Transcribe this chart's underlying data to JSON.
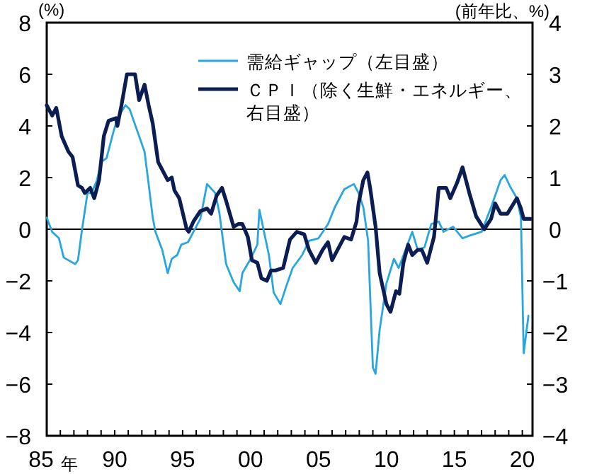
{
  "chart_data": {
    "type": "line",
    "ylabel": "(%)",
    "y2label": "(前年比、%)",
    "legend": "top",
    "xlabel": "年",
    "xlim": [
      1985,
      2020.75
    ],
    "xticks": [
      {
        "value": 1985,
        "label": "85"
      },
      {
        "value": 1986,
        "label": null
      },
      {
        "value": 1987,
        "label": null
      },
      {
        "value": 1988,
        "label": null
      },
      {
        "value": 1989,
        "label": null
      },
      {
        "value": 1990,
        "label": "90"
      },
      {
        "value": 1991,
        "label": null
      },
      {
        "value": 1992,
        "label": null
      },
      {
        "value": 1993,
        "label": null
      },
      {
        "value": 1994,
        "label": null
      },
      {
        "value": 1995,
        "label": "95"
      },
      {
        "value": 1996,
        "label": null
      },
      {
        "value": 1997,
        "label": null
      },
      {
        "value": 1998,
        "label": null
      },
      {
        "value": 1999,
        "label": null
      },
      {
        "value": 2000,
        "label": "00"
      },
      {
        "value": 2001,
        "label": null
      },
      {
        "value": 2002,
        "label": null
      },
      {
        "value": 2003,
        "label": null
      },
      {
        "value": 2004,
        "label": null
      },
      {
        "value": 2005,
        "label": "05"
      },
      {
        "value": 2006,
        "label": null
      },
      {
        "value": 2007,
        "label": null
      },
      {
        "value": 2008,
        "label": null
      },
      {
        "value": 2009,
        "label": null
      },
      {
        "value": 2010,
        "label": "10"
      },
      {
        "value": 2011,
        "label": null
      },
      {
        "value": 2012,
        "label": null
      },
      {
        "value": 2013,
        "label": null
      },
      {
        "value": 2014,
        "label": null
      },
      {
        "value": 2015,
        "label": "15"
      },
      {
        "value": 2016,
        "label": null
      },
      {
        "value": 2017,
        "label": null
      },
      {
        "value": 2018,
        "label": null
      },
      {
        "value": 2019,
        "label": null
      },
      {
        "value": 2020,
        "label": "20"
      }
    ],
    "ylim": [
      -8,
      8
    ],
    "yticks": [
      -8,
      -6,
      -4,
      -2,
      0,
      2,
      4,
      6,
      8
    ],
    "y2lim": [
      -4,
      4
    ],
    "y2ticks": [
      -4,
      -3,
      -2,
      -1,
      0,
      1,
      2,
      3,
      4
    ],
    "ref_lines": [
      {
        "axis": "y",
        "value": 0
      }
    ],
    "series": [
      {
        "name": "需給ギャップ（左目盛）",
        "color": "#29a6de",
        "x": [
          1985.0,
          1985.4,
          1985.9,
          1986.25,
          1987.1,
          1987.3,
          1987.6,
          1988.0,
          1988.3,
          1988.7,
          1989.0,
          1989.4,
          1989.9,
          1990.2,
          1990.8,
          1991.1,
          1991.6,
          1992.2,
          1992.5,
          1992.8,
          1993.0,
          1993.5,
          1993.9,
          1994.2,
          1994.6,
          1994.9,
          1995.4,
          1995.8,
          1996.3,
          1996.8,
          1997.4,
          1997.7,
          1998.2,
          1998.75,
          1999.2,
          1999.4,
          2000.0,
          2000.5,
          2000.65,
          2001.35,
          2001.7,
          2002.2,
          2002.6,
          2003.1,
          2003.8,
          2004.3,
          2005.0,
          2005.7,
          2006.2,
          2006.9,
          2007.6,
          2007.95,
          2008.3,
          2008.65,
          2009.0,
          2009.2,
          2009.5,
          2010.0,
          2010.55,
          2010.9,
          2011.4,
          2011.9,
          2012.3,
          2012.8,
          2013.3,
          2013.85,
          2014.2,
          2014.9,
          2015.6,
          2016.1,
          2017.0,
          2017.7,
          2018.4,
          2018.7,
          2019.1,
          2019.6,
          2019.9,
          2020.1,
          2020.45
        ],
        "values": [
          0.45,
          -0.1,
          -0.35,
          -1.1,
          -1.35,
          -1.2,
          0.0,
          1.4,
          1.4,
          1.9,
          2.6,
          2.75,
          3.75,
          4.3,
          4.8,
          4.65,
          3.9,
          3.0,
          1.75,
          0.45,
          -0.1,
          -0.8,
          -1.7,
          -1.15,
          -1.0,
          -0.6,
          -0.5,
          -0.1,
          0.4,
          1.75,
          1.4,
          0.65,
          -1.35,
          -2.05,
          -2.4,
          -1.7,
          -1.15,
          -0.6,
          0.75,
          -1.0,
          -2.45,
          -2.9,
          -2.25,
          -1.5,
          -1.0,
          -0.45,
          -0.35,
          0.2,
          0.85,
          1.55,
          1.75,
          1.4,
          0.85,
          -0.45,
          -5.35,
          -5.6,
          -3.9,
          -2.1,
          -1.15,
          -1.5,
          -0.8,
          -0.1,
          -0.8,
          -0.7,
          0.2,
          0.3,
          -0.1,
          0.1,
          -0.35,
          -0.25,
          -0.1,
          0.85,
          1.9,
          2.1,
          1.65,
          1.2,
          0.45,
          -4.8,
          -3.35
        ]
      },
      {
        "name": "ＣＰＩ（除く生鮮・エネルギー、右目盛）",
        "color": "#0b1d52",
        "axis": "y2",
        "x": [
          1985.0,
          1985.4,
          1985.7,
          1986.1,
          1986.6,
          1986.9,
          1987.3,
          1987.6,
          1987.8,
          1988.2,
          1988.5,
          1988.85,
          1989.2,
          1989.55,
          1990.1,
          1990.2,
          1990.5,
          1990.9,
          1991.5,
          1991.8,
          1992.2,
          1992.5,
          1992.8,
          1993.2,
          1993.5,
          1993.9,
          1994.2,
          1994.4,
          1994.75,
          1995.3,
          1995.45,
          1995.8,
          1996.3,
          1996.8,
          1997.1,
          1997.5,
          1997.9,
          1998.2,
          1998.75,
          1999.1,
          1999.4,
          1999.8,
          2000.1,
          2000.5,
          2000.8,
          2001.2,
          2001.5,
          2001.8,
          2002.4,
          2002.9,
          2003.4,
          2003.95,
          2004.3,
          2004.8,
          2005.3,
          2005.7,
          2006.0,
          2006.6,
          2006.9,
          2007.4,
          2007.8,
          2007.95,
          2008.3,
          2008.6,
          2008.8,
          2009.2,
          2009.5,
          2010.0,
          2010.3,
          2010.7,
          2010.95,
          2011.25,
          2011.6,
          2011.9,
          2012.3,
          2012.6,
          2013.0,
          2013.5,
          2013.85,
          2014.4,
          2014.7,
          2015.2,
          2015.6,
          2016.1,
          2016.6,
          2017.2,
          2017.7,
          2018.0,
          2018.4,
          2018.9,
          2019.6,
          2019.9,
          2020.1,
          2020.6
        ],
        "values": [
          2.4,
          2.2,
          2.35,
          1.8,
          1.5,
          1.4,
          0.85,
          0.8,
          0.7,
          0.8,
          0.6,
          0.95,
          1.8,
          2.1,
          2.15,
          2.0,
          2.4,
          3.0,
          3.0,
          2.5,
          2.8,
          2.4,
          2.05,
          1.3,
          1.15,
          0.95,
          1.0,
          0.75,
          0.6,
          0.0,
          -0.05,
          0.15,
          0.35,
          0.4,
          0.3,
          0.65,
          0.8,
          0.55,
          0.05,
          0.1,
          0.1,
          -0.15,
          -0.6,
          -0.65,
          -0.95,
          -1.0,
          -0.8,
          -0.8,
          -0.75,
          -0.2,
          -0.05,
          -0.1,
          -0.4,
          -0.65,
          -0.4,
          -0.25,
          -0.6,
          -0.3,
          -0.15,
          -0.2,
          0.15,
          0.5,
          0.95,
          1.1,
          0.8,
          0.05,
          -0.85,
          -1.45,
          -1.6,
          -1.2,
          -1.25,
          -0.65,
          -0.3,
          -0.5,
          -0.4,
          -0.4,
          -0.65,
          -0.15,
          0.8,
          0.8,
          0.6,
          0.9,
          1.2,
          0.7,
          0.25,
          0.0,
          0.2,
          0.5,
          0.3,
          0.3,
          0.6,
          0.4,
          0.2,
          0.2
        ]
      }
    ]
  }
}
